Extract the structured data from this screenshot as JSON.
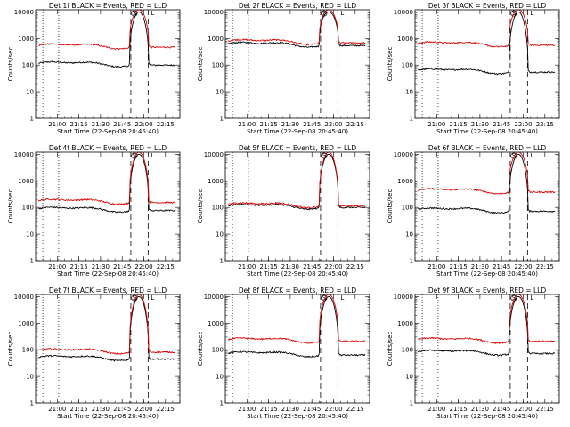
{
  "chart_data": [
    {
      "type": "line",
      "title": "Det 1f BLACK = Events, RED = LLD",
      "xlabel": "Start Time (22-Sep-08 20:45:40)",
      "ylabel": "Counts/sec",
      "ylim": [
        1,
        12000
      ],
      "yscale": "log",
      "xlim": [
        "20:45",
        "22:25"
      ],
      "xticks": [
        "21:00",
        "21:15",
        "21:30",
        "21:45",
        "22:00",
        "22:15"
      ],
      "yticks": [
        "1",
        "10",
        "100",
        "1000",
        "10000"
      ],
      "dashed_marker_times": [
        "21:51",
        "22:03"
      ],
      "dotted_marker_times": [
        "20:50",
        "21:01"
      ],
      "saa_markers": [
        "S",
        "L"
      ],
      "series": [
        {
          "name": "Events",
          "color": "#000000",
          "base": 110,
          "peak": 10000
        },
        {
          "name": "LLD",
          "color": "#dd0000",
          "base": 520,
          "peak": 12000
        }
      ]
    },
    {
      "type": "line",
      "title": "Det 2f BLACK = Events, RED = LLD",
      "xlabel": "Start Time (22-Sep-08 20:45:40)",
      "ylabel": "Counts/sec",
      "ylim": [
        1,
        12000
      ],
      "yscale": "log",
      "xlim": [
        "20:45",
        "22:25"
      ],
      "xticks": [
        "21:00",
        "21:15",
        "21:30",
        "21:45",
        "22:00",
        "22:15"
      ],
      "yticks": [
        "1",
        "10",
        "100",
        "1000",
        "10000"
      ],
      "dashed_marker_times": [
        "21:51",
        "22:03"
      ],
      "dotted_marker_times": [
        "20:50",
        "21:01"
      ],
      "saa_markers": [
        "S",
        "L"
      ],
      "series": [
        {
          "name": "Events",
          "color": "#000000",
          "base": 600,
          "peak": 10000
        },
        {
          "name": "LLD",
          "color": "#dd0000",
          "base": 760,
          "peak": 12000
        }
      ]
    },
    {
      "type": "line",
      "title": "Det 3f BLACK = Events, RED = LLD",
      "xlabel": "Start Time (22-Sep-08 20:45:40)",
      "ylabel": "Counts/sec",
      "ylim": [
        1,
        12000
      ],
      "yscale": "log",
      "xlim": [
        "20:45",
        "22:25"
      ],
      "xticks": [
        "21:00",
        "21:15",
        "21:30",
        "21:45",
        "22:00",
        "22:15"
      ],
      "yticks": [
        "1",
        "10",
        "100",
        "1000",
        "10000"
      ],
      "dashed_marker_times": [
        "21:51",
        "22:03"
      ],
      "dotted_marker_times": [
        "20:50",
        "21:01"
      ],
      "saa_markers": [
        "S",
        "L"
      ],
      "series": [
        {
          "name": "Events",
          "color": "#000000",
          "base": 60,
          "peak": 10000
        },
        {
          "name": "LLD",
          "color": "#dd0000",
          "base": 620,
          "peak": 12000
        }
      ]
    },
    {
      "type": "line",
      "title": "Det 4f BLACK = Events, RED = LLD",
      "xlabel": "Start Time (22-Sep-08 20:45:40)",
      "ylabel": "Counts/sec",
      "ylim": [
        1,
        12000
      ],
      "yscale": "log",
      "xlim": [
        "20:45",
        "22:25"
      ],
      "xticks": [
        "21:00",
        "21:15",
        "21:30",
        "21:45",
        "22:00",
        "22:15"
      ],
      "yticks": [
        "1",
        "10",
        "100",
        "1000",
        "10000"
      ],
      "dashed_marker_times": [
        "21:51",
        "22:03"
      ],
      "dotted_marker_times": [
        "20:50",
        "21:01"
      ],
      "saa_markers": [
        "S",
        "L"
      ],
      "series": [
        {
          "name": "Events",
          "color": "#000000",
          "base": 85,
          "peak": 10000
        },
        {
          "name": "LLD",
          "color": "#dd0000",
          "base": 170,
          "peak": 12000
        }
      ]
    },
    {
      "type": "line",
      "title": "Det 5f BLACK = Events, RED = LLD",
      "xlabel": "Start Time (22-Sep-08 20:45:40)",
      "ylabel": "Counts/sec",
      "ylim": [
        1,
        12000
      ],
      "yscale": "log",
      "xlim": [
        "20:45",
        "22:25"
      ],
      "xticks": [
        "21:00",
        "21:15",
        "21:30",
        "21:45",
        "22:00",
        "22:15"
      ],
      "yticks": [
        "1",
        "10",
        "100",
        "1000",
        "10000"
      ],
      "dashed_marker_times": [
        "21:51",
        "22:03"
      ],
      "dotted_marker_times": [
        "20:50",
        "21:01"
      ],
      "saa_markers": [
        "S",
        "L"
      ],
      "series": [
        {
          "name": "Events",
          "color": "#000000",
          "base": 110,
          "peak": 10000
        },
        {
          "name": "LLD",
          "color": "#dd0000",
          "base": 125,
          "peak": 12000
        }
      ]
    },
    {
      "type": "line",
      "title": "Det 6f BLACK = Events, RED = LLD",
      "xlabel": "Start Time (22-Sep-08 20:45:40)",
      "ylabel": "Counts/sec",
      "ylim": [
        1,
        12000
      ],
      "yscale": "log",
      "xlim": [
        "20:45",
        "22:25"
      ],
      "xticks": [
        "21:00",
        "21:15",
        "21:30",
        "21:45",
        "22:00",
        "22:15"
      ],
      "yticks": [
        "1",
        "10",
        "100",
        "1000",
        "10000"
      ],
      "dashed_marker_times": [
        "21:51",
        "22:03"
      ],
      "dotted_marker_times": [
        "20:50",
        "21:01"
      ],
      "saa_markers": [
        "S",
        "L"
      ],
      "series": [
        {
          "name": "Events",
          "color": "#000000",
          "base": 80,
          "peak": 10000
        },
        {
          "name": "LLD",
          "color": "#dd0000",
          "base": 420,
          "peak": 12000
        }
      ]
    },
    {
      "type": "line",
      "title": "Det 7f BLACK = Events, RED = LLD",
      "xlabel": "Start Time (22-Sep-08 20:45:40)",
      "ylabel": "Counts/sec",
      "ylim": [
        1,
        12000
      ],
      "yscale": "log",
      "xlim": [
        "20:45",
        "22:25"
      ],
      "xticks": [
        "21:00",
        "21:15",
        "21:30",
        "21:45",
        "22:00",
        "22:15"
      ],
      "yticks": [
        "1",
        "10",
        "100",
        "1000",
        "10000"
      ],
      "dashed_marker_times": [
        "21:51",
        "22:03"
      ],
      "dotted_marker_times": [
        "20:50",
        "21:01"
      ],
      "saa_markers": [
        "S",
        "L"
      ],
      "series": [
        {
          "name": "Events",
          "color": "#000000",
          "base": 50,
          "peak": 10000
        },
        {
          "name": "LLD",
          "color": "#dd0000",
          "base": 90,
          "peak": 12000
        }
      ]
    },
    {
      "type": "line",
      "title": "Det 8f BLACK = Events, RED = LLD",
      "xlabel": "Start Time (22-Sep-08 20:45:40)",
      "ylabel": "Counts/sec",
      "ylim": [
        1,
        12000
      ],
      "yscale": "log",
      "xlim": [
        "20:45",
        "22:25"
      ],
      "xticks": [
        "21:00",
        "21:15",
        "21:30",
        "21:45",
        "22:00",
        "22:15"
      ],
      "yticks": [
        "1",
        "10",
        "100",
        "1000",
        "10000"
      ],
      "dashed_marker_times": [
        "21:51",
        "22:03"
      ],
      "dotted_marker_times": [
        "20:50",
        "21:01"
      ],
      "saa_markers": [
        "S",
        "L"
      ],
      "series": [
        {
          "name": "Events",
          "color": "#000000",
          "base": 70,
          "peak": 10000
        },
        {
          "name": "LLD",
          "color": "#dd0000",
          "base": 230,
          "peak": 12000
        }
      ]
    },
    {
      "type": "line",
      "title": "Det 9f BLACK = Events, RED = LLD",
      "xlabel": "Start Time (22-Sep-08 20:45:40)",
      "ylabel": "Counts/sec",
      "ylim": [
        1,
        12000
      ],
      "yscale": "log",
      "xlim": [
        "20:45",
        "22:25"
      ],
      "xticks": [
        "21:00",
        "21:15",
        "21:30",
        "21:45",
        "22:00",
        "22:15"
      ],
      "yticks": [
        "1",
        "10",
        "100",
        "1000",
        "10000"
      ],
      "dashed_marker_times": [
        "21:51",
        "22:03"
      ],
      "dotted_marker_times": [
        "20:50",
        "21:01"
      ],
      "saa_markers": [
        "S",
        "L"
      ],
      "series": [
        {
          "name": "Events",
          "color": "#000000",
          "base": 80,
          "peak": 10000
        },
        {
          "name": "LLD",
          "color": "#dd0000",
          "base": 230,
          "peak": 12000
        }
      ]
    }
  ]
}
